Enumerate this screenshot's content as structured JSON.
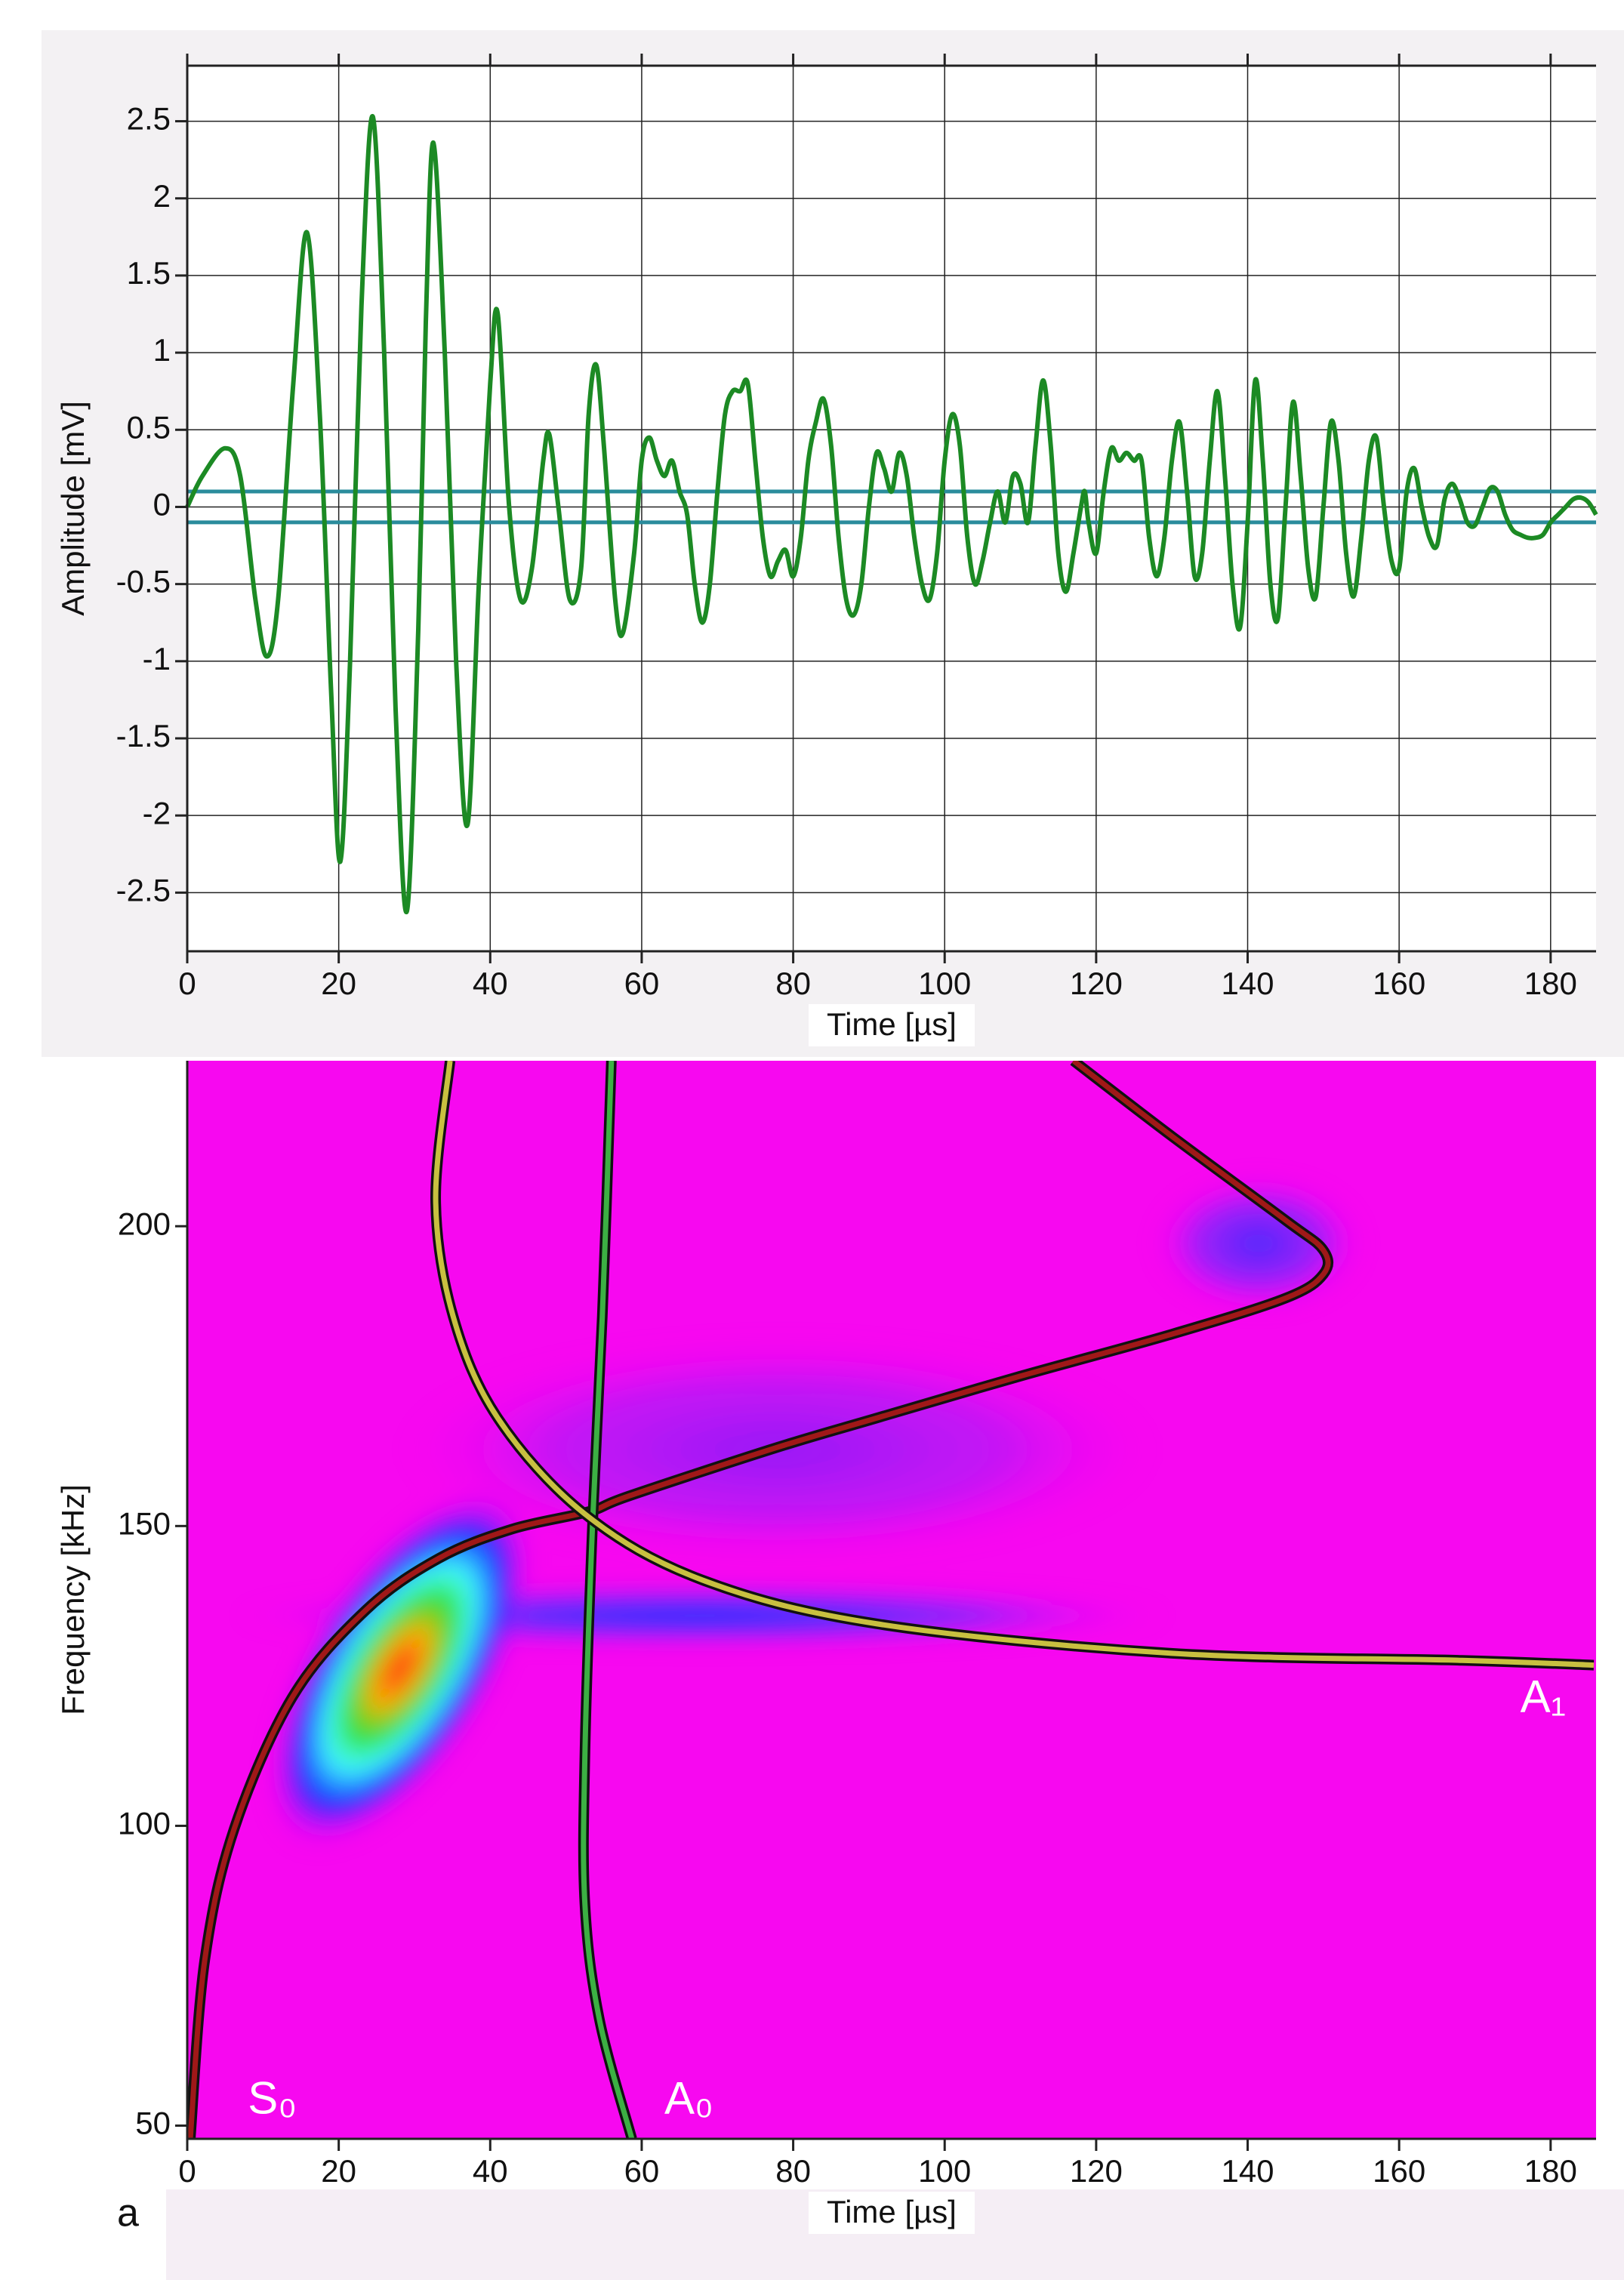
{
  "chart_data": [
    {
      "type": "line",
      "xlabel": "Time [µs]",
      "ylabel": "Amplitude [mV]",
      "xlim": [
        0,
        186
      ],
      "ylim": [
        -2.88,
        2.86
      ],
      "xticks": [
        0,
        20,
        40,
        60,
        80,
        100,
        120,
        140,
        160,
        180
      ],
      "yticks": [
        -2.5,
        -2,
        -1.5,
        -1,
        -0.5,
        0,
        0.5,
        1,
        1.5,
        2,
        2.5
      ],
      "grid": true,
      "color": "#1c8a24",
      "hlines": [
        0.1,
        -0.1
      ],
      "hline_color": "#2a8c9c",
      "x": [
        0,
        2,
        5,
        7,
        9,
        10.5,
        12,
        14,
        15.8,
        17.5,
        19,
        20.2,
        21.5,
        23,
        24.5,
        26,
        27.5,
        29,
        30.5,
        31.5,
        32.5,
        34,
        35.5,
        37,
        38.5,
        40,
        41,
        42.5,
        44,
        45.5,
        47,
        47.8,
        49,
        50.5,
        52,
        53,
        54,
        55,
        56.5,
        57.5,
        59,
        60,
        61,
        62,
        63,
        64,
        65,
        66,
        67,
        68,
        69,
        70,
        71,
        72,
        73,
        74,
        75,
        76,
        77,
        78,
        79,
        80,
        81,
        82,
        83,
        84,
        85,
        86,
        87,
        88,
        89,
        90,
        91,
        92,
        93,
        94,
        95,
        96,
        97,
        98,
        99,
        100,
        101,
        102,
        103,
        104,
        105,
        106,
        107,
        108,
        109,
        110,
        111,
        112,
        113,
        114,
        115,
        116,
        117,
        118,
        118.5,
        119,
        120,
        121,
        122,
        123,
        124,
        125,
        126,
        127,
        128,
        129,
        130,
        131,
        132,
        133,
        134,
        135,
        136,
        137,
        138,
        139,
        140,
        141,
        142,
        143,
        144,
        145,
        146,
        147,
        148,
        149,
        150,
        151,
        152,
        153,
        154,
        155,
        156,
        157,
        158,
        159,
        160,
        161,
        162,
        163,
        164,
        165,
        166,
        167,
        168,
        169,
        170,
        171,
        172,
        173,
        174,
        175,
        176,
        177,
        178,
        179,
        180,
        181,
        182,
        183,
        184,
        185,
        186
      ],
      "values": [
        0,
        0.2,
        0.38,
        0.2,
        -0.6,
        -0.97,
        -0.6,
        0.8,
        1.78,
        0.6,
        -1.2,
        -2.3,
        -1.0,
        1.3,
        2.53,
        1.0,
        -1.3,
        -2.62,
        -0.8,
        1.2,
        2.36,
        1.0,
        -1.0,
        -2.06,
        -0.5,
        0.8,
        1.25,
        0,
        -0.6,
        -0.4,
        0.3,
        0.47,
        0,
        -0.6,
        -0.4,
        0.6,
        0.92,
        0.4,
        -0.6,
        -0.82,
        -0.3,
        0.3,
        0.45,
        0.3,
        0.2,
        0.3,
        0.1,
        -0.05,
        -0.5,
        -0.75,
        -0.5,
        0.1,
        0.6,
        0.75,
        0.75,
        0.8,
        0.3,
        -0.2,
        -0.45,
        -0.35,
        -0.28,
        -0.45,
        -0.2,
        0.3,
        0.55,
        0.7,
        0.4,
        -0.2,
        -0.6,
        -0.7,
        -0.5,
        0,
        0.35,
        0.25,
        0.1,
        0.35,
        0.2,
        -0.2,
        -0.5,
        -0.6,
        -0.3,
        0.3,
        0.6,
        0.4,
        -0.2,
        -0.5,
        -0.35,
        -0.1,
        0.1,
        -0.1,
        0.2,
        0.15,
        -0.1,
        0.4,
        0.82,
        0.4,
        -0.3,
        -0.55,
        -0.3,
        0,
        0.1,
        -0.1,
        -0.3,
        0.1,
        0.38,
        0.3,
        0.35,
        0.3,
        0.3,
        -0.2,
        -0.45,
        -0.2,
        0.3,
        0.55,
        0.1,
        -0.45,
        -0.3,
        0.3,
        0.75,
        0.2,
        -0.5,
        -0.78,
        -0.1,
        0.82,
        0.3,
        -0.5,
        -0.72,
        0,
        0.68,
        0.2,
        -0.4,
        -0.58,
        0,
        0.55,
        0.3,
        -0.3,
        -0.58,
        -0.2,
        0.3,
        0.45,
        0,
        -0.35,
        -0.4,
        0.1,
        0.25,
        0,
        -0.2,
        -0.25,
        0.05,
        0.15,
        0.05,
        -0.1,
        -0.12,
        0,
        0.12,
        0.1,
        -0.05,
        -0.15,
        -0.18,
        -0.2,
        -0.2,
        -0.18,
        -0.1,
        -0.05,
        0,
        0.05,
        0.06,
        0.03,
        -0.05
      ]
    },
    {
      "type": "heatmap",
      "xlabel": "Time [µs]",
      "ylabel": "Frequency [kHz]",
      "panel_label": "a",
      "xlim": [
        0,
        186
      ],
      "ylim": [
        47.8,
        227.6
      ],
      "xticks": [
        0,
        20,
        40,
        60,
        80,
        100,
        120,
        140,
        160,
        180
      ],
      "yticks": [
        50,
        100,
        150,
        200
      ],
      "curves": [
        {
          "label": "S₀",
          "color": "#a01818",
          "x": [
            0.4,
            2.3,
            6.2,
            13.9,
            23.6,
            33.2,
            42.9,
            53,
            58.3,
            77.6,
            91,
            110,
            130,
            145,
            150,
            150,
            145,
            130,
            117
          ],
          "y": [
            47.8,
            77.5,
            99.5,
            121.5,
            136,
            144.6,
            149.5,
            152.4,
            155,
            163,
            168,
            175,
            182,
            188,
            192,
            196,
            201,
            215,
            227.6
          ]
        },
        {
          "label": "A₀",
          "color": "#3cb043",
          "x": [
            56,
            54.8,
            53.5,
            52.5,
            52.5,
            54.4,
            58.7
          ],
          "y": [
            227.6,
            185,
            150,
            111.7,
            87,
            67.8,
            47.8
          ]
        },
        {
          "label": "A₁",
          "color": "#c8c040",
          "x": [
            34.7,
            32.8,
            35.1,
            41,
            52.5,
            68,
            91,
            129.7,
            168.3,
            185.7
          ],
          "y": [
            227.6,
            204.4,
            185,
            168,
            152,
            141,
            133.7,
            128.8,
            127.6,
            126.8
          ]
        }
      ]
    }
  ]
}
